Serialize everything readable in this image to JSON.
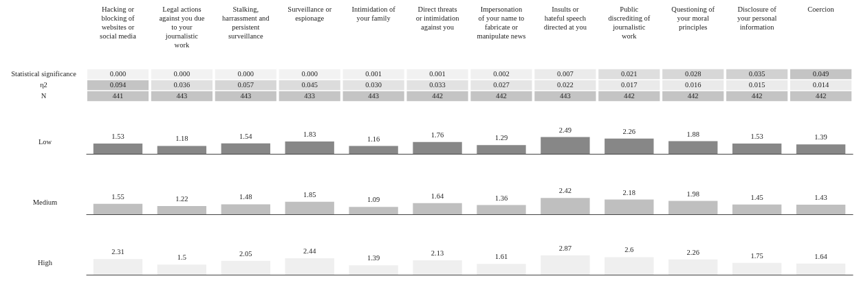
{
  "chart_data": [
    {
      "type": "heatmap",
      "categories": [
        "Hacking or blocking of websites or social media",
        "Legal actions against you due to your journalistic work",
        "Stalking, harrassment and persistent surveillance",
        "Surveillance or espionage",
        "Intimidation of your family",
        "Direct threats or intimidation against you",
        "Impersonation of your name to fabricate or manipulate news",
        "Insults or hateful speech directed at you",
        "Public discrediting of journalistic work",
        "Questioning of your moral principles",
        "Disclosure of your personal information",
        "Coercion"
      ],
      "y_categories": [
        "Statistical significance",
        "η2",
        "N"
      ],
      "cells": [
        [
          0.0,
          0.0,
          0.0,
          0.0,
          0.001,
          0.001,
          0.002,
          0.007,
          0.021,
          0.028,
          0.035,
          0.049
        ],
        [
          0.094,
          0.036,
          0.057,
          0.045,
          0.03,
          0.033,
          0.027,
          0.022,
          0.017,
          0.016,
          0.015,
          0.014
        ],
        [
          441,
          443,
          443,
          433,
          443,
          442,
          442,
          443,
          442,
          442,
          442,
          442
        ]
      ],
      "cell_labels": [
        [
          "0.000",
          "0.000",
          "0.000",
          "0.000",
          "0.001",
          "0.001",
          "0.002",
          "0.007",
          "0.021",
          "0.028",
          "0.035",
          "0.049"
        ],
        [
          "0.094",
          "0.036",
          "0.057",
          "0.045",
          "0.030",
          "0.033",
          "0.027",
          "0.022",
          "0.017",
          "0.016",
          "0.015",
          "0.014"
        ],
        [
          "441",
          "443",
          "443",
          "433",
          "443",
          "442",
          "442",
          "443",
          "442",
          "442",
          "442",
          "442"
        ]
      ]
    },
    {
      "type": "bar",
      "categories": [
        null,
        null,
        null,
        null,
        null,
        null,
        null,
        null,
        null,
        null,
        null,
        null
      ],
      "data_labels": true,
      "series": [
        {
          "name": "Low",
          "color": "#878787",
          "values": [
            1.53,
            1.18,
            1.54,
            1.83,
            1.16,
            1.76,
            1.29,
            2.49,
            2.26,
            1.88,
            1.53,
            1.39
          ]
        }
      ]
    },
    {
      "type": "bar",
      "categories": [
        null,
        null,
        null,
        null,
        null,
        null,
        null,
        null,
        null,
        null,
        null,
        null
      ],
      "data_labels": true,
      "series": [
        {
          "name": "Medium",
          "color": "#bfbfbf",
          "values": [
            1.55,
            1.22,
            1.48,
            1.85,
            1.09,
            1.64,
            1.36,
            2.42,
            2.18,
            1.98,
            1.45,
            1.43
          ]
        }
      ]
    },
    {
      "type": "bar",
      "categories": [
        null,
        null,
        null,
        null,
        null,
        null,
        null,
        null,
        null,
        null,
        null,
        null
      ],
      "data_labels": true,
      "series": [
        {
          "name": "High",
          "color": "#efefef",
          "values": [
            2.31,
            1.5,
            2.05,
            2.44,
            1.39,
            2.13,
            1.61,
            2.87,
            2.6,
            2.26,
            1.75,
            1.64
          ]
        }
      ]
    }
  ]
}
